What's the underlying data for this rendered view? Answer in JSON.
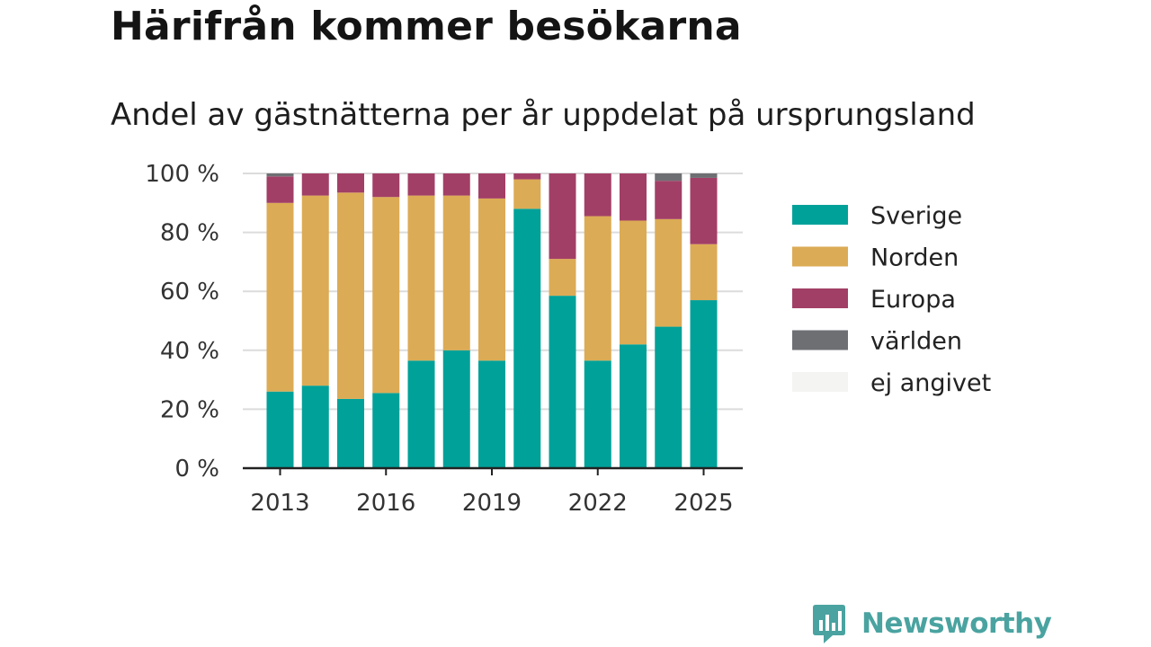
{
  "title": "Härifrån kommer besökarna",
  "subtitle": "Andel av gästnätterna per år uppdelat på ursprungsland",
  "brand": {
    "name": "Newsworthy",
    "icon": "newsworthy-logo-icon"
  },
  "chart_data": {
    "type": "bar",
    "stacked": true,
    "categories": [
      "2013",
      "2014",
      "2015",
      "2016",
      "2017",
      "2018",
      "2019",
      "2020",
      "2021",
      "2022",
      "2023",
      "2024",
      "2025"
    ],
    "x_tick_labels": [
      "2013",
      "2016",
      "2019",
      "2022",
      "2025"
    ],
    "y_tick_labels": [
      "0 %",
      "20 %",
      "40 %",
      "60 %",
      "80 %",
      "100 %"
    ],
    "ylim": [
      0,
      100
    ],
    "grid": true,
    "legend_position": "right",
    "series": [
      {
        "name": "Sverige",
        "color": "#00a199",
        "values": [
          26,
          28,
          23.5,
          25.5,
          36.5,
          40,
          36.5,
          88,
          58.5,
          36.5,
          42,
          48,
          57
        ]
      },
      {
        "name": "Norden",
        "color": "#dcab55",
        "values": [
          64,
          64.5,
          70,
          66.5,
          56,
          52.5,
          55,
          10,
          12.5,
          49,
          42,
          36.5,
          19
        ]
      },
      {
        "name": "Europa",
        "color": "#a23f66",
        "values": [
          9,
          7.5,
          6.5,
          8,
          7.5,
          7.5,
          8.5,
          2,
          29,
          14.5,
          16,
          13,
          22.5
        ]
      },
      {
        "name": "världen",
        "color": "#6e6f73",
        "values": [
          1,
          0,
          0,
          0,
          0,
          0,
          0,
          0,
          0,
          0,
          0,
          2.5,
          1.5
        ]
      },
      {
        "name": "ej angivet",
        "color": "#f4f4f2",
        "values": [
          0,
          0,
          0,
          0,
          0,
          0,
          0,
          0,
          0,
          0,
          0,
          0,
          0
        ]
      }
    ]
  }
}
